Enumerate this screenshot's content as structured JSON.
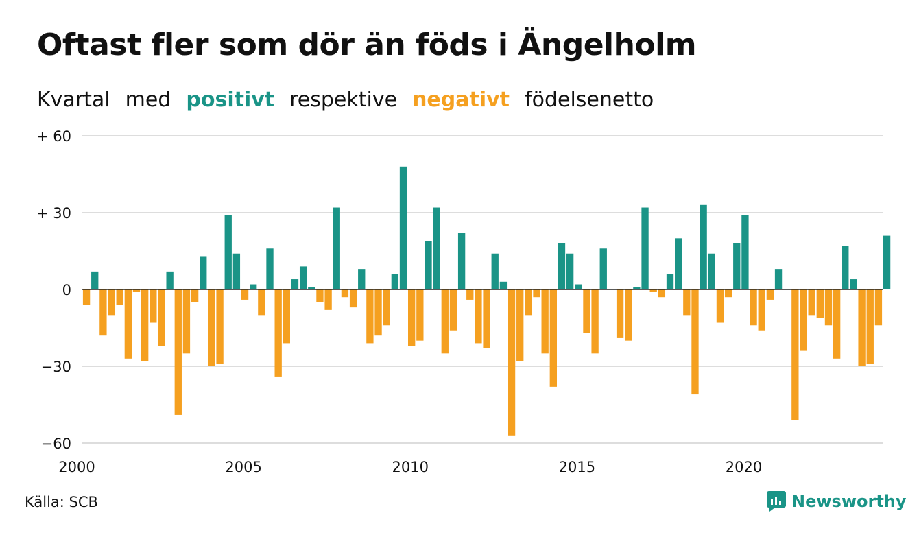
{
  "header": {
    "title": "Oftast fler som dör än föds i Ängelholm",
    "subtitle_parts": [
      "Kvartal",
      "med",
      "positivt",
      "respektive",
      "negativt",
      "födelsenetto"
    ]
  },
  "colors": {
    "positive": "#1a9487",
    "negative": "#f5a020",
    "grid": "#dddddd",
    "zero": "#222222"
  },
  "footer": {
    "source": "Källa: SCB",
    "brand": "Newsworthy",
    "brand_icon": "newsworthy-logo-icon"
  },
  "chart_data": {
    "type": "bar",
    "xlim": [
      2000,
      2024
    ],
    "ylim": [
      -60,
      60
    ],
    "y_ticks": [
      {
        "value": 60,
        "label": "+ 60"
      },
      {
        "value": 30,
        "label": "+ 30"
      },
      {
        "value": 0,
        "label": "0"
      },
      {
        "value": -30,
        "label": "−30"
      },
      {
        "value": -60,
        "label": "−60"
      }
    ],
    "x_ticks": [
      {
        "value": 2000,
        "label": "2000"
      },
      {
        "value": 2005,
        "label": "2005"
      },
      {
        "value": 2010,
        "label": "2010"
      },
      {
        "value": 2015,
        "label": "2015"
      },
      {
        "value": 2020,
        "label": "2020"
      }
    ],
    "grid": true,
    "series": [
      {
        "start_quarter": "2000 Q1",
        "values": [
          -6,
          7,
          -18,
          -10,
          -6,
          -27,
          -1,
          -28,
          -13,
          -22,
          7,
          -49,
          -25,
          -5,
          13,
          -30,
          -29,
          29,
          14,
          -4,
          2,
          -10,
          16,
          -34,
          -21,
          4,
          9,
          1,
          -5,
          -8,
          32,
          -3,
          -7,
          8,
          -21,
          -18,
          -14,
          6,
          48,
          -22,
          -20,
          19,
          32,
          -25,
          -16,
          22,
          -4,
          -21,
          -23,
          14,
          3,
          -57,
          -28,
          -10,
          -3,
          -25,
          -38,
          18,
          14,
          2,
          -17,
          -25,
          16,
          0,
          -19,
          -20,
          1,
          32,
          -1,
          -3,
          6,
          20,
          -10,
          -41,
          33,
          14,
          -13,
          -3,
          18,
          29,
          -14,
          -16,
          -4,
          8,
          0,
          -51,
          -24,
          -10,
          -11,
          -14,
          -27,
          17,
          4,
          -30,
          -29,
          -14,
          21
        ]
      }
    ]
  }
}
